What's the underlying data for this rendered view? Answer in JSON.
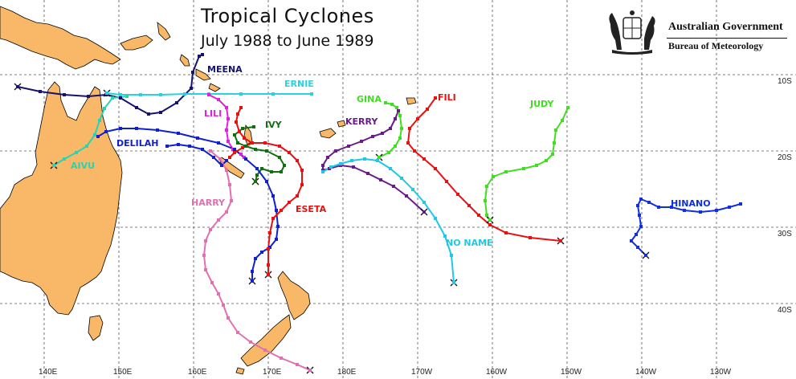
{
  "title": "Tropical Cyclones",
  "subtitle": "July 1988 to June 1989",
  "agency": {
    "line1": "Australian Government",
    "line2": "Bureau of Meteorology"
  },
  "lat_labels": [
    "10S",
    "20S",
    "30S",
    "40S"
  ],
  "lon_labels": [
    "140E",
    "150E",
    "160E",
    "170E",
    "180E",
    "170W",
    "160W",
    "150W",
    "140W",
    "130W"
  ],
  "cyclones": [
    {
      "name": "MEENA",
      "color": "#14146e"
    },
    {
      "name": "ERNIE",
      "color": "#2ad2dc"
    },
    {
      "name": "LILI",
      "color": "#e020e0"
    },
    {
      "name": "IVY",
      "color": "#107010"
    },
    {
      "name": "DELILAH",
      "color": "#1020cc"
    },
    {
      "name": "AIVU",
      "color": "#2ad2b4"
    },
    {
      "name": "HARRY",
      "color": "#e070b0"
    },
    {
      "name": "ESETA",
      "color": "#e81010"
    },
    {
      "name": "GINA",
      "color": "#40dd20"
    },
    {
      "name": "KERRY",
      "color": "#6a1a8a"
    },
    {
      "name": "FILI",
      "color": "#e81010"
    },
    {
      "name": "JUDY",
      "color": "#40dd20"
    },
    {
      "name": "NO NAME",
      "color": "#20c8e6"
    },
    {
      "name": "HINANO",
      "color": "#1030dd"
    }
  ],
  "colors": {
    "land": "#f8b868",
    "coast": "#000000",
    "grid": "#555555",
    "background": "#ffffff"
  }
}
